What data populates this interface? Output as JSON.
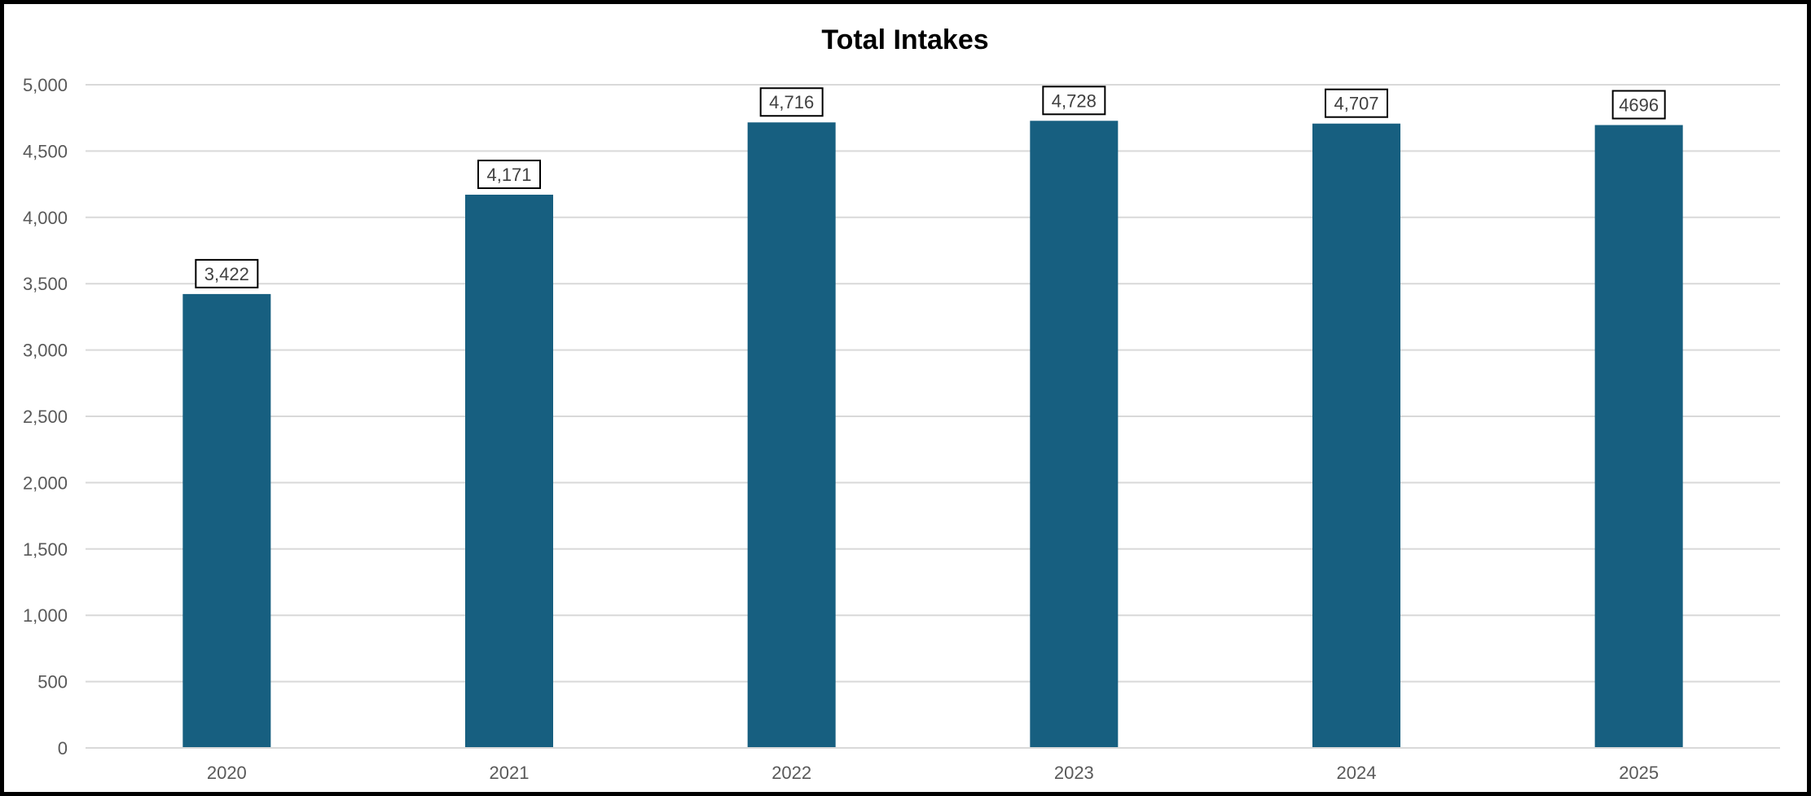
{
  "chart_data": {
    "type": "bar",
    "title": "Total Intakes",
    "xlabel": "",
    "ylabel": "",
    "categories": [
      "2020",
      "2021",
      "2022",
      "2023",
      "2024",
      "2025"
    ],
    "values": [
      3422,
      4171,
      4716,
      4728,
      4707,
      4696
    ],
    "data_labels": [
      "3,422",
      "4,171",
      "4,716",
      "4,728",
      "4,707",
      "4696"
    ],
    "ylim": [
      0,
      5000
    ],
    "yticks": [
      0,
      500,
      1000,
      1500,
      2000,
      2500,
      3000,
      3500,
      4000,
      4500,
      5000
    ],
    "ytick_labels": [
      "0",
      "500",
      "1,000",
      "1,500",
      "2,000",
      "2,500",
      "3,000",
      "3,500",
      "4,000",
      "4,500",
      "5,000"
    ],
    "grid": true,
    "legend": "none",
    "colors": {
      "bar": "#175f80",
      "grid": "#d9d9d9",
      "tick_text": "#595959",
      "frame": "#000000"
    }
  }
}
